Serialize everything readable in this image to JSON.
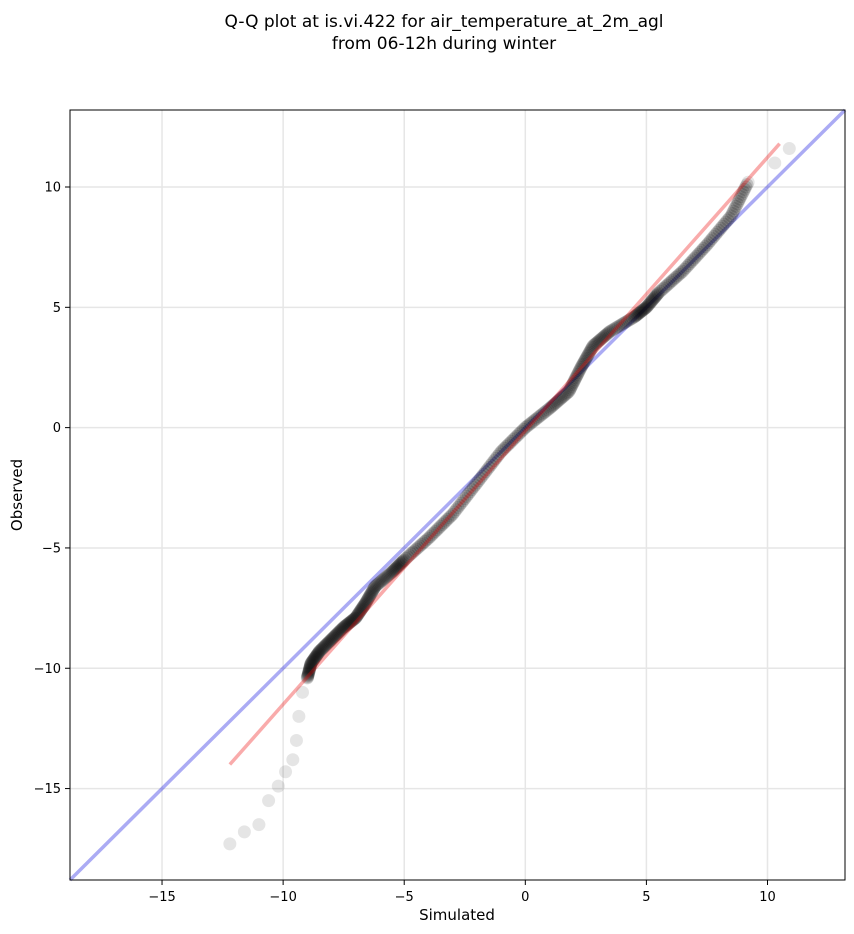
{
  "chart_data": {
    "type": "scatter",
    "title_line1": "Q-Q plot at is.vi.422 for air_temperature_at_2m_agl",
    "title_line2": "from 06-12h during winter",
    "xlabel": "Simulated",
    "ylabel": "Observed",
    "xlim": [
      -18.8,
      13.2
    ],
    "ylim": [
      -18.8,
      13.2
    ],
    "grid": true,
    "x_ticks": [
      -15,
      -10,
      -5,
      0,
      5,
      10
    ],
    "y_ticks": [
      -15,
      -10,
      -5,
      0,
      5,
      10
    ],
    "x_tick_labels": [
      "−15",
      "−10",
      "−5",
      "0",
      "5",
      "10"
    ],
    "y_tick_labels": [
      "−15",
      "−10",
      "−5",
      "0",
      "5",
      "10"
    ],
    "identity_line": {
      "from": [
        -18.8,
        -18.8
      ],
      "to": [
        13.2,
        13.2
      ],
      "color": "#0000dd"
    },
    "fit_line": {
      "from": [
        -12.2,
        -14.0
      ],
      "to": [
        10.5,
        11.8
      ],
      "color": "#ee0000"
    },
    "point_color": "#000000",
    "quantile_curve": [
      [
        -12.2,
        -17.3
      ],
      [
        -11.6,
        -16.8
      ],
      [
        -11.0,
        -16.5
      ],
      [
        -10.6,
        -15.5
      ],
      [
        -10.2,
        -14.9
      ],
      [
        -9.9,
        -14.3
      ],
      [
        -9.6,
        -13.8
      ],
      [
        -9.45,
        -13.0
      ],
      [
        -9.35,
        -12.0
      ],
      [
        -9.2,
        -11.0
      ],
      [
        -9.0,
        -10.4
      ],
      [
        -8.85,
        -9.8
      ],
      [
        -8.5,
        -9.3
      ],
      [
        -8.0,
        -8.8
      ],
      [
        -7.5,
        -8.3
      ],
      [
        -7.0,
        -7.9
      ],
      [
        -6.6,
        -7.3
      ],
      [
        -6.2,
        -6.6
      ],
      [
        -5.5,
        -6.0
      ],
      [
        -5.0,
        -5.5
      ],
      [
        -4.0,
        -4.6
      ],
      [
        -3.0,
        -3.6
      ],
      [
        -2.0,
        -2.3
      ],
      [
        -1.0,
        -1.0
      ],
      [
        0.0,
        0.0
      ],
      [
        1.0,
        0.8
      ],
      [
        1.8,
        1.5
      ],
      [
        2.3,
        2.5
      ],
      [
        2.8,
        3.4
      ],
      [
        3.5,
        4.0
      ],
      [
        4.5,
        4.6
      ],
      [
        5.0,
        5.0
      ],
      [
        5.5,
        5.6
      ],
      [
        6.5,
        6.5
      ],
      [
        7.5,
        7.6
      ],
      [
        8.5,
        8.8
      ],
      [
        9.2,
        10.2
      ],
      [
        10.3,
        11.0
      ],
      [
        10.9,
        11.6
      ]
    ]
  }
}
